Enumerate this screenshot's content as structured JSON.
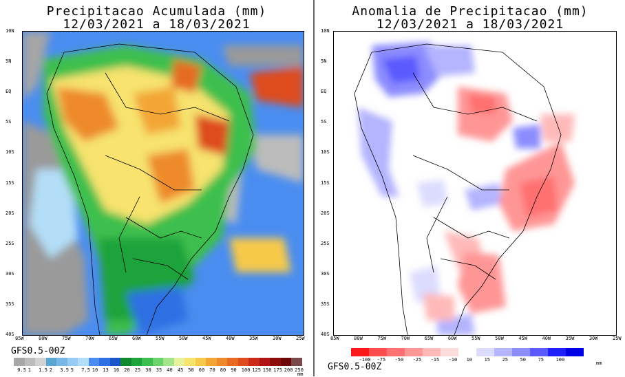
{
  "left": {
    "title_line1": "Precipitacao Acumulada (mm)",
    "title_line2": "12/03/2021 a 18/03/2021",
    "model_label": "GFS0.5-00Z",
    "unit": "mm",
    "lat_labels": [
      "10N",
      "5N",
      "EQ",
      "5S",
      "10S",
      "15S",
      "20S",
      "25S",
      "30S",
      "35S",
      "40S"
    ],
    "lon_labels": [
      "85W",
      "80W",
      "75W",
      "70W",
      "65W",
      "60W",
      "55W",
      "50W",
      "45W",
      "40W",
      "35W",
      "30W",
      "25W"
    ],
    "colorbar": {
      "labels": [
        "0.5",
        "1",
        "1.5",
        "2",
        "3.5",
        "5",
        "7.5",
        "10",
        "13",
        "16",
        "20",
        "25",
        "30",
        "35",
        "40",
        "45",
        "50",
        "60",
        "70",
        "80",
        "90",
        "100",
        "125",
        "150",
        "175",
        "200",
        "250"
      ],
      "colors": [
        "#a6a6a6",
        "#bcbcbc",
        "#d2d2d2",
        "#5ba7d4",
        "#78b8e6",
        "#95cbf5",
        "#b4def8",
        "#4a8df0",
        "#2e6fe3",
        "#1a55c9",
        "#108a2f",
        "#1ca33a",
        "#3cbf4e",
        "#6ad46a",
        "#a4e58c",
        "#e6f39a",
        "#f7e36e",
        "#f7c94a",
        "#f3a636",
        "#ee8a2b",
        "#e66a22",
        "#de4b1d",
        "#cc2a19",
        "#b01414",
        "#8c0c0c",
        "#6e0707",
        "#7a4a4a"
      ]
    }
  },
  "right": {
    "title_line1": "Anomalia de Precipitacao (mm)",
    "title_line2": "12/03/2021 a 18/03/2021",
    "model_label": "GFS0.5-00Z",
    "unit": "mm",
    "lat_labels": [
      "10N",
      "5N",
      "EQ",
      "5S",
      "10S",
      "15S",
      "20S",
      "25S",
      "30S",
      "35S",
      "40S"
    ],
    "lon_labels": [
      "85W",
      "80W",
      "75W",
      "70W",
      "65W",
      "60W",
      "55W",
      "50W",
      "45W",
      "40W",
      "35W",
      "30W",
      "25W"
    ],
    "colorbar": {
      "labels": [
        "-100",
        "-75",
        "-50",
        "-25",
        "-15",
        "-10",
        "10",
        "15",
        "25",
        "50",
        "75",
        "100"
      ],
      "colors": [
        "#ff1a1a",
        "#ff4d4d",
        "#ff7070",
        "#ff9696",
        "#ffb9b9",
        "#ffdcdc",
        "#ffffff",
        "#dcdcff",
        "#b4b4ff",
        "#8c8cff",
        "#5a5aff",
        "#2020ff",
        "#0000e6"
      ]
    }
  }
}
